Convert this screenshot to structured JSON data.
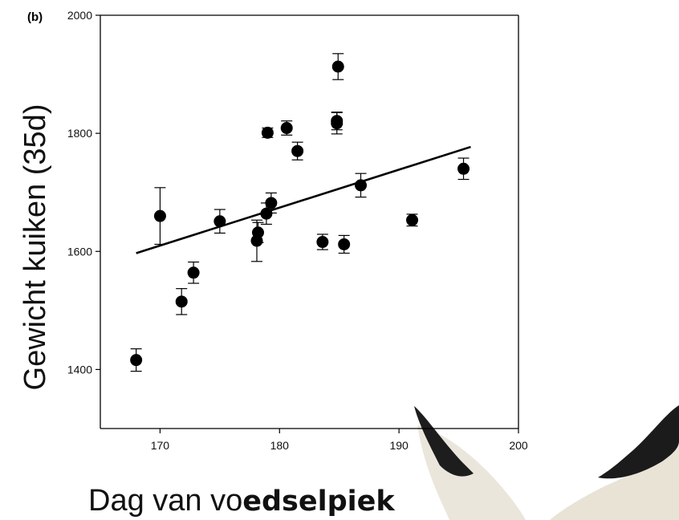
{
  "chart_data": {
    "type": "scatter",
    "panel_label": "(b)",
    "xlabel_regular": "Dag van vo",
    "xlabel_bold": "edselpiek",
    "ylabel": "Gewicht kuiken (35d)",
    "xlim": [
      165,
      200
    ],
    "ylim": [
      1300,
      2000
    ],
    "x_ticks": [
      170,
      180,
      190,
      200
    ],
    "y_ticks": [
      1400,
      1600,
      1800,
      2000
    ],
    "x_tick_labels": [
      "170",
      "180",
      "190",
      "200"
    ],
    "y_tick_labels": [
      "1400",
      "1600",
      "1800",
      "2000"
    ],
    "grid": false,
    "points": [
      {
        "x": 168,
        "y": 1416,
        "err": 19
      },
      {
        "x": 170,
        "y": 1660,
        "err": 48
      },
      {
        "x": 171.8,
        "y": 1515,
        "err": 22
      },
      {
        "x": 172.8,
        "y": 1564,
        "err": 18
      },
      {
        "x": 175,
        "y": 1651,
        "err": 20
      },
      {
        "x": 178.1,
        "y": 1618,
        "err": 35
      },
      {
        "x": 178.2,
        "y": 1632,
        "err": 17
      },
      {
        "x": 178.9,
        "y": 1664,
        "err": 18
      },
      {
        "x": 179.3,
        "y": 1682,
        "err": 17
      },
      {
        "x": 179,
        "y": 1801,
        "err": 8
      },
      {
        "x": 180.6,
        "y": 1809,
        "err": 12
      },
      {
        "x": 181.5,
        "y": 1770,
        "err": 15
      },
      {
        "x": 183.6,
        "y": 1616,
        "err": 13
      },
      {
        "x": 184.8,
        "y": 1821,
        "err": 15
      },
      {
        "x": 184.8,
        "y": 1817,
        "err": 18
      },
      {
        "x": 184.9,
        "y": 1913,
        "err": 22
      },
      {
        "x": 185.4,
        "y": 1612,
        "err": 15
      },
      {
        "x": 186.8,
        "y": 1712,
        "err": 20
      },
      {
        "x": 191.1,
        "y": 1653,
        "err": 10
      },
      {
        "x": 195.4,
        "y": 1740,
        "err": 18
      }
    ],
    "trendline": {
      "x": [
        168,
        196
      ],
      "y": [
        1597,
        1777
      ]
    }
  },
  "colors": {
    "points": "#000000",
    "axis": "#000000",
    "background": "#ffffff",
    "bird_wing_tip": "#1a1a1a",
    "bird_feather": "#e9e5dc"
  },
  "decoration": "flying-bird-wings"
}
